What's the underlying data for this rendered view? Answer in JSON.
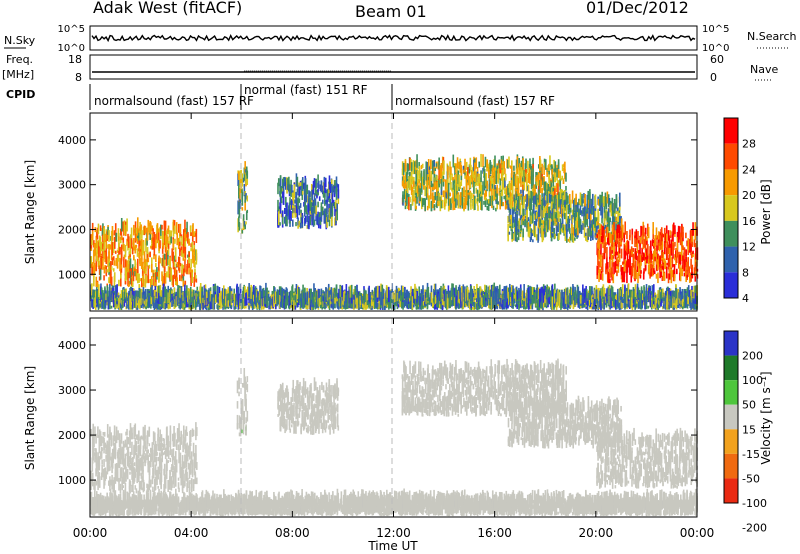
{
  "header": {
    "station": "Adak West (fitACF)",
    "beam": "Beam 01",
    "date": "01/Dec/2012"
  },
  "panels": {
    "nsky": {
      "left_label": "N.Sky",
      "right_label": "N.Search",
      "left_ticks": [
        "10^5",
        "10^0"
      ],
      "right_ticks": [
        "10^5",
        "10^0"
      ]
    },
    "freq": {
      "left_label_1": "Freq.",
      "left_label_2": "[MHz]",
      "right_label": "Nave",
      "left_ticks": [
        "18",
        "8"
      ],
      "right_ticks": [
        "60",
        "0"
      ]
    },
    "cpid": {
      "label": "CPID",
      "segments": [
        {
          "label": "normalsound (fast) 157 RF"
        },
        {
          "label": "normal (fast) 151 RF"
        },
        {
          "label": "normalsound (fast) 157 RF"
        }
      ]
    },
    "power": {
      "ylabel": "Slant Range [km]",
      "colorbar_label": "Power [dB]",
      "colorbar_ticks": [
        "28",
        "24",
        "20",
        "16",
        "12",
        "8",
        "4"
      ]
    },
    "velocity": {
      "ylabel": "Slant Range [km]",
      "colorbar_label": "Velocity [m s⁻¹]",
      "colorbar_ticks": [
        "200",
        "100",
        "50",
        "15",
        "-15",
        "-50",
        "-100",
        "-200"
      ]
    }
  },
  "xaxis": {
    "title": "Time UT",
    "ticks": [
      "00:00",
      "04:00",
      "08:00",
      "12:00",
      "16:00",
      "20:00",
      "00:00"
    ]
  },
  "yaxis_ticks": [
    "1000",
    "2000",
    "3000",
    "4000"
  ],
  "colors": {
    "power_scale": [
      "#ff0000",
      "#ff4a00",
      "#f79a00",
      "#d8c81e",
      "#3f8f5c",
      "#2f62ad",
      "#2a2ed8"
    ],
    "velocity_scale": [
      "#2b34c7",
      "#1f7a2a",
      "#4ec63c",
      "#c8c8c0",
      "#f2a21e",
      "#f06a10",
      "#ea2a12"
    ]
  },
  "chart_data": {
    "type": "heatmap",
    "title": "Adak West (fitACF) Beam 01 01/Dec/2012",
    "xlabel": "Time UT",
    "x_range_hours": [
      0,
      24
    ],
    "ylabel": "Slant Range [km]",
    "ylim_km": [
      180,
      4600
    ],
    "cpid_segments": [
      {
        "label": "normalsound (fast) 157 RF",
        "start": "00:00",
        "end": "06:00"
      },
      {
        "label": "normal (fast) 151 RF",
        "start": "06:00",
        "end": "12:00"
      },
      {
        "label": "normalsound (fast) 157 RF",
        "start": "12:00",
        "end": "00:00"
      }
    ],
    "freq_mhz_approx": 10,
    "power_db_range": [
      0,
      32
    ],
    "velocity_ms_range": [
      -250,
      250
    ],
    "echo_regions": [
      {
        "t": [
          0.0,
          4.2
        ],
        "range_km": [
          700,
          2000
        ],
        "power_db": 20,
        "velocity_ms": -5
      },
      {
        "t": [
          5.8,
          6.2
        ],
        "range_km": [
          1900,
          3300
        ],
        "power_db": 14,
        "velocity_ms": 10
      },
      {
        "t": [
          7.4,
          9.8
        ],
        "range_km": [
          2000,
          3000
        ],
        "power_db": 8,
        "velocity_ms": 5
      },
      {
        "t": [
          12.3,
          18.8
        ],
        "range_km": [
          2400,
          3400
        ],
        "power_db": 16,
        "velocity_ms": 0
      },
      {
        "t": [
          16.5,
          21.0
        ],
        "range_km": [
          1700,
          2600
        ],
        "power_db": 12,
        "velocity_ms": 0
      },
      {
        "t": [
          20.0,
          24.0
        ],
        "range_km": [
          800,
          1900
        ],
        "power_db": 26,
        "velocity_ms": -5
      },
      {
        "t": [
          0.0,
          24.0
        ],
        "range_km": [
          200,
          500
        ],
        "power_db": 10,
        "velocity_ms": 0
      }
    ]
  }
}
